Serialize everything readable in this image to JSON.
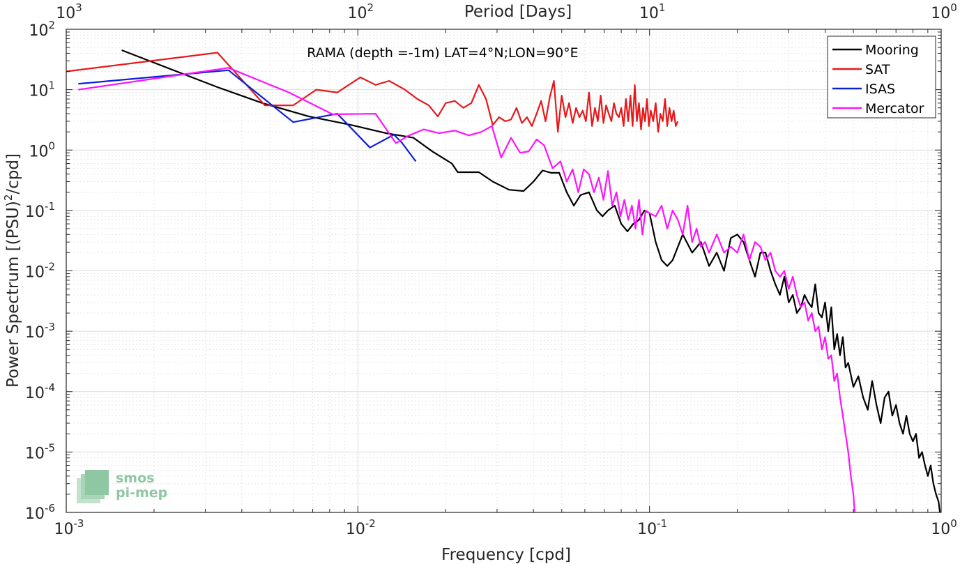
{
  "chart_data": {
    "type": "line",
    "title": "RAMA (depth =-1m) LAT=4°N;LON=90°E",
    "xlabel": "Frequency [cpd]",
    "ylabel": "Power Spectrum [(PSU)",
    "ylabel_sup": "2",
    "ylabel_suffix": "/cpd]",
    "top_xlabel": "Period [Days]",
    "xscale": "log",
    "yscale": "log",
    "xlim": [
      0.001,
      1
    ],
    "ylim": [
      1e-06,
      100
    ],
    "grid": true,
    "legend_position": "top-right",
    "x_ticks": [
      {
        "value": 0.001,
        "base": "10",
        "exp": "-3"
      },
      {
        "value": 0.01,
        "base": "10",
        "exp": "-2"
      },
      {
        "value": 0.1,
        "base": "10",
        "exp": "-1"
      },
      {
        "value": 1,
        "base": "10",
        "exp": "0"
      }
    ],
    "y_ticks": [
      {
        "value": 100,
        "base": "10",
        "exp": "2"
      },
      {
        "value": 10,
        "base": "10",
        "exp": "1"
      },
      {
        "value": 1,
        "base": "10",
        "exp": "0"
      },
      {
        "value": 0.1,
        "base": "10",
        "exp": "-1"
      },
      {
        "value": 0.01,
        "base": "10",
        "exp": "-2"
      },
      {
        "value": 0.001,
        "base": "10",
        "exp": "-3"
      },
      {
        "value": 0.0001,
        "base": "10",
        "exp": "-4"
      },
      {
        "value": 1e-05,
        "base": "10",
        "exp": "-5"
      },
      {
        "value": 1e-06,
        "base": "10",
        "exp": "-6"
      }
    ],
    "top_ticks": [
      {
        "value": 0.001,
        "base": "10",
        "exp": "3"
      },
      {
        "value": 0.01,
        "base": "10",
        "exp": "2"
      },
      {
        "value": 0.1,
        "base": "10",
        "exp": "1"
      },
      {
        "value": 1,
        "base": "10",
        "exp": "0"
      }
    ],
    "series": [
      {
        "name": "Mooring",
        "color": "#000000",
        "points": [
          [
            0.00155,
            45
          ],
          [
            0.0033,
            11
          ],
          [
            0.0047,
            6.0
          ],
          [
            0.0068,
            3.6
          ],
          [
            0.0095,
            2.6
          ],
          [
            0.0125,
            1.9
          ],
          [
            0.0155,
            1.6
          ],
          [
            0.018,
            0.95
          ],
          [
            0.021,
            0.6
          ],
          [
            0.022,
            0.43
          ],
          [
            0.026,
            0.43
          ],
          [
            0.029,
            0.3
          ],
          [
            0.033,
            0.22
          ],
          [
            0.037,
            0.21
          ],
          [
            0.04,
            0.3
          ],
          [
            0.043,
            0.46
          ],
          [
            0.046,
            0.42
          ],
          [
            0.049,
            0.42
          ],
          [
            0.052,
            0.2
          ],
          [
            0.055,
            0.12
          ],
          [
            0.058,
            0.18
          ],
          [
            0.062,
            0.2
          ],
          [
            0.066,
            0.1
          ],
          [
            0.069,
            0.08
          ],
          [
            0.072,
            0.1
          ],
          [
            0.076,
            0.12
          ],
          [
            0.08,
            0.06
          ],
          [
            0.084,
            0.045
          ],
          [
            0.088,
            0.06
          ],
          [
            0.092,
            0.07
          ],
          [
            0.096,
            0.1
          ],
          [
            0.1,
            0.09
          ],
          [
            0.105,
            0.03
          ],
          [
            0.11,
            0.015
          ],
          [
            0.115,
            0.012
          ],
          [
            0.12,
            0.015
          ],
          [
            0.13,
            0.04
          ],
          [
            0.14,
            0.02
          ],
          [
            0.15,
            0.03
          ],
          [
            0.16,
            0.012
          ],
          [
            0.17,
            0.02
          ],
          [
            0.18,
            0.01
          ],
          [
            0.19,
            0.035
          ],
          [
            0.2,
            0.04
          ],
          [
            0.21,
            0.03
          ],
          [
            0.22,
            0.015
          ],
          [
            0.23,
            0.008
          ],
          [
            0.24,
            0.02
          ],
          [
            0.25,
            0.02
          ],
          [
            0.26,
            0.01
          ],
          [
            0.27,
            0.006
          ],
          [
            0.28,
            0.004
          ],
          [
            0.29,
            0.008
          ],
          [
            0.3,
            0.003
          ],
          [
            0.31,
            0.004
          ],
          [
            0.32,
            0.002
          ],
          [
            0.33,
            0.0025
          ],
          [
            0.34,
            0.004
          ],
          [
            0.35,
            0.003
          ],
          [
            0.36,
            0.0025
          ],
          [
            0.37,
            0.006
          ],
          [
            0.38,
            0.002
          ],
          [
            0.39,
            0.0017
          ],
          [
            0.4,
            0.003
          ],
          [
            0.41,
            0.001
          ],
          [
            0.42,
            0.0025
          ],
          [
            0.43,
            0.0005
          ],
          [
            0.44,
            0.0009
          ],
          [
            0.45,
            0.0004
          ],
          [
            0.46,
            0.0008
          ],
          [
            0.47,
            0.00025
          ],
          [
            0.48,
            0.0003
          ],
          [
            0.5,
            0.00012
          ],
          [
            0.52,
            0.00018
          ],
          [
            0.54,
            8e-05
          ],
          [
            0.56,
            5e-05
          ],
          [
            0.58,
            0.00015
          ],
          [
            0.6,
            6e-05
          ],
          [
            0.62,
            3e-05
          ],
          [
            0.64,
            8e-05
          ],
          [
            0.66,
            0.0001
          ],
          [
            0.68,
            4e-05
          ],
          [
            0.7,
            6e-05
          ],
          [
            0.72,
            3e-05
          ],
          [
            0.74,
            2e-05
          ],
          [
            0.76,
            4e-05
          ],
          [
            0.78,
            2e-05
          ],
          [
            0.8,
            1.5e-05
          ],
          [
            0.82,
            2e-05
          ],
          [
            0.84,
            8e-06
          ],
          [
            0.86,
            1e-05
          ],
          [
            0.88,
            6e-06
          ],
          [
            0.9,
            4e-06
          ],
          [
            0.92,
            6e-06
          ],
          [
            0.94,
            3e-06
          ],
          [
            0.96,
            2e-06
          ],
          [
            0.98,
            1.5e-06
          ],
          [
            0.99,
            1e-06
          ]
        ]
      },
      {
        "name": "SAT",
        "color": "#e8171a",
        "points": [
          [
            0.001,
            20
          ],
          [
            0.0033,
            41
          ],
          [
            0.0048,
            5.5
          ],
          [
            0.006,
            5.5
          ],
          [
            0.0072,
            10
          ],
          [
            0.0085,
            9
          ],
          [
            0.0102,
            16
          ],
          [
            0.0115,
            12
          ],
          [
            0.0128,
            14
          ],
          [
            0.0145,
            10
          ],
          [
            0.016,
            7
          ],
          [
            0.0175,
            5.5
          ],
          [
            0.0188,
            3.6
          ],
          [
            0.02,
            6.0
          ],
          [
            0.0215,
            6.5
          ],
          [
            0.023,
            5.0
          ],
          [
            0.0245,
            6.0
          ],
          [
            0.026,
            12
          ],
          [
            0.0275,
            7.0
          ],
          [
            0.029,
            2.6
          ],
          [
            0.0305,
            3.5
          ],
          [
            0.032,
            3.0
          ],
          [
            0.0335,
            3.2
          ],
          [
            0.035,
            5.0
          ],
          [
            0.0365,
            2.8
          ],
          [
            0.038,
            3.5
          ],
          [
            0.0395,
            2.5
          ],
          [
            0.041,
            4.0
          ],
          [
            0.0425,
            6.5
          ],
          [
            0.044,
            3.0
          ],
          [
            0.0455,
            7.5
          ],
          [
            0.047,
            14
          ],
          [
            0.0485,
            2.0
          ],
          [
            0.05,
            8.0
          ],
          [
            0.0515,
            3.5
          ],
          [
            0.053,
            6.0
          ],
          [
            0.0545,
            2.8
          ],
          [
            0.056,
            5.0
          ],
          [
            0.0575,
            3.5
          ],
          [
            0.059,
            4.5
          ],
          [
            0.0605,
            3.0
          ],
          [
            0.062,
            9.0
          ],
          [
            0.0635,
            2.5
          ],
          [
            0.065,
            5.0
          ],
          [
            0.0665,
            3.0
          ],
          [
            0.068,
            8.0
          ],
          [
            0.0695,
            2.8
          ],
          [
            0.071,
            5.5
          ],
          [
            0.0725,
            4.0
          ],
          [
            0.074,
            3.0
          ],
          [
            0.0755,
            6.0
          ],
          [
            0.077,
            4.0
          ],
          [
            0.0785,
            3.5
          ],
          [
            0.08,
            5.0
          ],
          [
            0.0815,
            2.5
          ],
          [
            0.083,
            7.0
          ],
          [
            0.0845,
            3.0
          ],
          [
            0.086,
            8.0
          ],
          [
            0.0875,
            2.5
          ],
          [
            0.089,
            12
          ],
          [
            0.0905,
            3.0
          ],
          [
            0.092,
            6.0
          ],
          [
            0.0935,
            2.2
          ],
          [
            0.095,
            5.0
          ],
          [
            0.0965,
            3.0
          ],
          [
            0.098,
            7.0
          ],
          [
            0.0995,
            2.5
          ],
          [
            0.101,
            4.5
          ],
          [
            0.103,
            3.0
          ],
          [
            0.105,
            6.0
          ],
          [
            0.107,
            2.0
          ],
          [
            0.109,
            4.0
          ],
          [
            0.111,
            3.0
          ],
          [
            0.113,
            7.0
          ],
          [
            0.115,
            2.5
          ],
          [
            0.117,
            5.0
          ],
          [
            0.119,
            3.0
          ],
          [
            0.121,
            4.5
          ],
          [
            0.123,
            2.5
          ],
          [
            0.125,
            3.0
          ]
        ]
      },
      {
        "name": "ISAS",
        "color": "#0a1fd8",
        "points": [
          [
            0.0011,
            12.5
          ],
          [
            0.0036,
            21
          ],
          [
            0.006,
            2.9
          ],
          [
            0.0085,
            4.0
          ],
          [
            0.011,
            1.1
          ],
          [
            0.0133,
            1.8
          ],
          [
            0.0142,
            1.3
          ],
          [
            0.0158,
            0.65
          ]
        ]
      },
      {
        "name": "Mercator",
        "color": "#ff12ff",
        "points": [
          [
            0.0011,
            10
          ],
          [
            0.0036,
            23
          ],
          [
            0.0058,
            9.0
          ],
          [
            0.0082,
            3.9
          ],
          [
            0.0115,
            4.0
          ],
          [
            0.0135,
            1.3
          ],
          [
            0.0148,
            1.7
          ],
          [
            0.0168,
            2.2
          ],
          [
            0.019,
            1.9
          ],
          [
            0.0215,
            2.1
          ],
          [
            0.024,
            1.75
          ],
          [
            0.0265,
            2.0
          ],
          [
            0.0288,
            2.5
          ],
          [
            0.031,
            0.75
          ],
          [
            0.0335,
            1.6
          ],
          [
            0.036,
            0.9
          ],
          [
            0.0385,
            0.95
          ],
          [
            0.041,
            1.5
          ],
          [
            0.0435,
            1.2
          ],
          [
            0.0465,
            0.5
          ],
          [
            0.0495,
            0.65
          ],
          [
            0.052,
            0.3
          ],
          [
            0.0545,
            0.48
          ],
          [
            0.057,
            0.2
          ],
          [
            0.0595,
            0.48
          ],
          [
            0.062,
            0.4
          ],
          [
            0.0645,
            0.2
          ],
          [
            0.067,
            0.35
          ],
          [
            0.0695,
            0.15
          ],
          [
            0.072,
            0.45
          ],
          [
            0.0745,
            0.12
          ],
          [
            0.077,
            0.2
          ],
          [
            0.0795,
            0.08
          ],
          [
            0.082,
            0.15
          ],
          [
            0.0845,
            0.07
          ],
          [
            0.087,
            0.12
          ],
          [
            0.0895,
            0.05
          ],
          [
            0.092,
            0.15
          ],
          [
            0.0945,
            0.04
          ],
          [
            0.097,
            0.1
          ],
          [
            0.1,
            0.09
          ],
          [
            0.105,
            0.08
          ],
          [
            0.11,
            0.12
          ],
          [
            0.115,
            0.05
          ],
          [
            0.12,
            0.1
          ],
          [
            0.125,
            0.07
          ],
          [
            0.13,
            0.04
          ],
          [
            0.135,
            0.12
          ],
          [
            0.14,
            0.03
          ],
          [
            0.145,
            0.05
          ],
          [
            0.15,
            0.025
          ],
          [
            0.155,
            0.03
          ],
          [
            0.16,
            0.02
          ],
          [
            0.17,
            0.04
          ],
          [
            0.18,
            0.02
          ],
          [
            0.19,
            0.025
          ],
          [
            0.2,
            0.02
          ],
          [
            0.21,
            0.04
          ],
          [
            0.22,
            0.015
          ],
          [
            0.23,
            0.03
          ],
          [
            0.24,
            0.025
          ],
          [
            0.25,
            0.015
          ],
          [
            0.26,
            0.02
          ],
          [
            0.27,
            0.01
          ],
          [
            0.28,
            0.008
          ],
          [
            0.29,
            0.01
          ],
          [
            0.3,
            0.005
          ],
          [
            0.31,
            0.008
          ],
          [
            0.32,
            0.004
          ],
          [
            0.33,
            0.0025
          ],
          [
            0.34,
            0.003
          ],
          [
            0.35,
            0.0015
          ],
          [
            0.36,
            0.002
          ],
          [
            0.37,
            0.001
          ],
          [
            0.38,
            0.0012
          ],
          [
            0.39,
            0.0005
          ],
          [
            0.4,
            0.0008
          ],
          [
            0.41,
            0.00035
          ],
          [
            0.42,
            0.0004
          ],
          [
            0.43,
            0.00015
          ],
          [
            0.44,
            0.0002
          ],
          [
            0.45,
            8e-05
          ],
          [
            0.46,
            4e-05
          ],
          [
            0.47,
            2e-05
          ],
          [
            0.48,
            1e-05
          ],
          [
            0.49,
            4e-06
          ],
          [
            0.5,
            2e-06
          ],
          [
            0.505,
            1e-06
          ]
        ]
      }
    ]
  },
  "logo": {
    "line1": "smos",
    "line2": "pi-mep"
  }
}
